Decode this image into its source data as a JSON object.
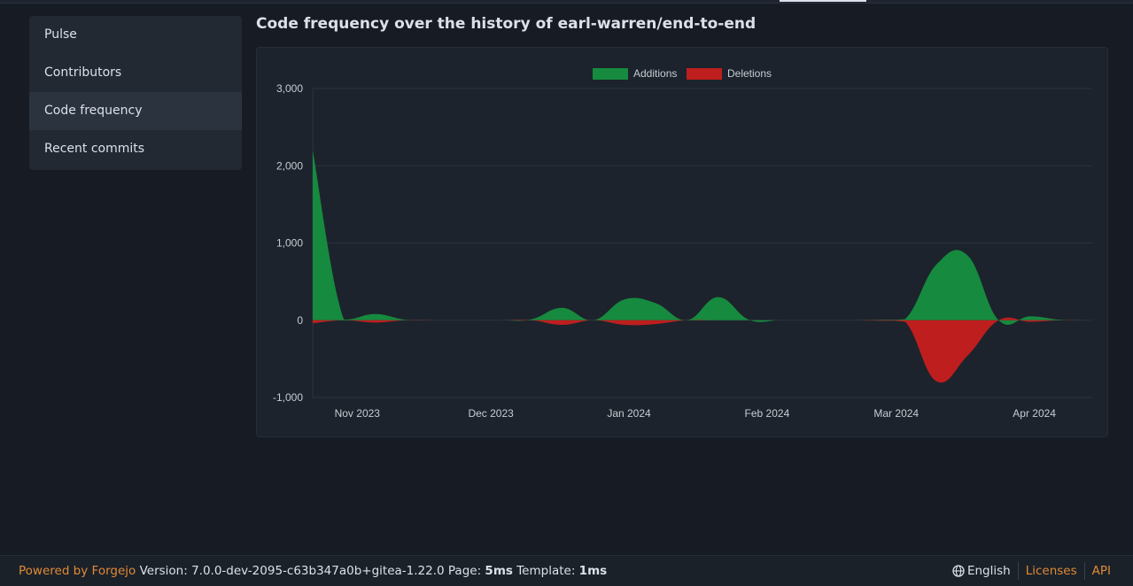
{
  "sidebar": {
    "items": [
      {
        "label": "Pulse"
      },
      {
        "label": "Contributors"
      },
      {
        "label": "Code frequency",
        "active": true
      },
      {
        "label": "Recent commits"
      }
    ]
  },
  "page_title": "Code frequency over the history of earl-warren/end-to-end",
  "chart_data": {
    "type": "area",
    "title": "",
    "xlabel": "",
    "ylabel": "",
    "ylim": [
      -1000,
      3000
    ],
    "xlim": [
      "2023-10-22",
      "2024-04-14"
    ],
    "yticks": [
      "3,000",
      "2,000",
      "1,000",
      "0",
      "-1,000"
    ],
    "ytick_values": [
      3000,
      2000,
      1000,
      0,
      -1000
    ],
    "xticks": [
      {
        "label": "Nov 2023",
        "date": "2023-11-01"
      },
      {
        "label": "Dec 2023",
        "date": "2023-12-01"
      },
      {
        "label": "Jan 2024",
        "date": "2024-01-01"
      },
      {
        "label": "Feb 2024",
        "date": "2024-02-01"
      },
      {
        "label": "Mar 2024",
        "date": "2024-03-01"
      },
      {
        "label": "Apr 2024",
        "date": "2024-04-01"
      }
    ],
    "grid": true,
    "legend_placement": "top",
    "x": [
      "2023-10-22",
      "2023-10-29",
      "2023-11-05",
      "2023-11-12",
      "2023-11-19",
      "2023-11-26",
      "2023-12-03",
      "2023-12-10",
      "2023-12-17",
      "2023-12-24",
      "2023-12-31",
      "2024-01-07",
      "2024-01-14",
      "2024-01-21",
      "2024-01-28",
      "2024-02-04",
      "2024-02-11",
      "2024-02-18",
      "2024-02-25",
      "2024-03-03",
      "2024-03-10",
      "2024-03-17",
      "2024-03-24",
      "2024-03-31",
      "2024-04-07",
      "2024-04-14"
    ],
    "series": [
      {
        "name": "Additions",
        "color": "#168a3e",
        "values": [
          2200,
          10,
          80,
          5,
          0,
          0,
          0,
          10,
          160,
          0,
          270,
          220,
          0,
          300,
          5,
          0,
          0,
          0,
          5,
          15,
          720,
          840,
          0,
          50,
          5,
          0
        ]
      },
      {
        "name": "Deletions",
        "color": "#be1e1e",
        "values": [
          -40,
          0,
          -30,
          0,
          0,
          0,
          0,
          0,
          -60,
          0,
          -60,
          -50,
          0,
          0,
          0,
          0,
          0,
          0,
          -5,
          -20,
          -790,
          -460,
          0,
          -20,
          0,
          0
        ]
      }
    ]
  },
  "footer": {
    "powered_by": "Powered by Forgejo",
    "version_label": "Version:",
    "version": "7.0.0-dev-2095-c63b347a0b+gitea-1.22.0",
    "page_label": "Page:",
    "page_time": "5ms",
    "template_label": "Template:",
    "template_time": "1ms",
    "language": "English",
    "licenses": "Licenses",
    "api": "API"
  }
}
